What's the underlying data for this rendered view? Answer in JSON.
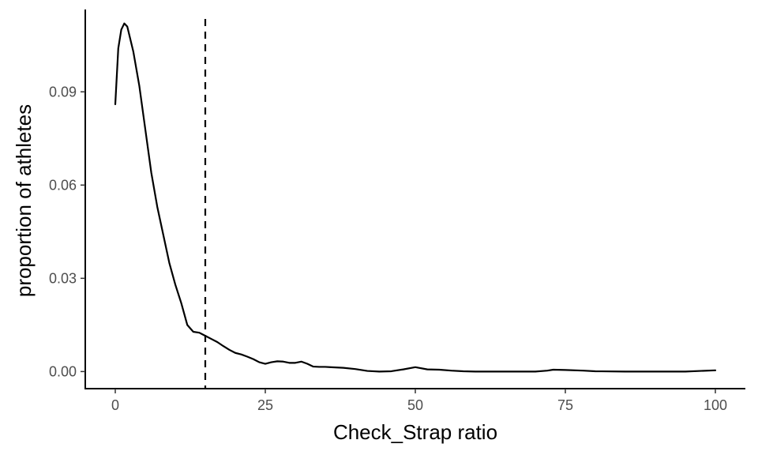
{
  "chart_data": {
    "type": "line",
    "title": "",
    "xlabel": "Check_Strap ratio",
    "ylabel": "proportion of athletes",
    "xlim": [
      -5,
      105
    ],
    "ylim": [
      -0.0055,
      0.1165
    ],
    "x_ticks": [
      0,
      25,
      50,
      75,
      100
    ],
    "x_tick_labels": [
      "0",
      "25",
      "50",
      "75",
      "100"
    ],
    "y_ticks": [
      0,
      0.03,
      0.06,
      0.09
    ],
    "y_tick_labels": [
      "0.00",
      "0.03",
      "0.06",
      "0.09"
    ],
    "grid": false,
    "legend": "none",
    "reference_line": {
      "x": 15,
      "style": "dashed"
    },
    "series": [
      {
        "x": [
          0,
          0.5,
          1,
          1.5,
          2,
          3,
          4,
          5,
          6,
          7,
          8,
          9,
          10,
          11,
          12,
          13,
          14,
          15,
          16,
          17,
          18,
          19,
          20,
          21,
          22,
          23,
          24,
          25,
          26,
          27,
          28,
          29,
          30,
          31,
          32,
          33,
          34,
          35,
          36,
          38,
          40,
          42,
          44,
          46,
          48,
          50,
          52,
          54,
          56,
          58,
          60,
          65,
          70,
          72,
          73,
          75,
          78,
          80,
          85,
          90,
          95,
          100
        ],
        "y": [
          0.086,
          0.104,
          0.11,
          0.112,
          0.111,
          0.103,
          0.092,
          0.078,
          0.064,
          0.053,
          0.044,
          0.035,
          0.028,
          0.022,
          0.015,
          0.0128,
          0.0125,
          0.0115,
          0.0105,
          0.0095,
          0.0082,
          0.007,
          0.006,
          0.0055,
          0.0048,
          0.004,
          0.003,
          0.0025,
          0.003,
          0.0033,
          0.0032,
          0.0028,
          0.0028,
          0.0032,
          0.0025,
          0.0016,
          0.0015,
          0.0015,
          0.0014,
          0.0012,
          0.0008,
          0.0002,
          0.0,
          0.0001,
          0.0007,
          0.0014,
          0.0007,
          0.0006,
          0.0003,
          0.0001,
          0.0,
          0.0,
          0.0,
          0.0003,
          0.0006,
          0.0005,
          0.0003,
          0.0001,
          0.0,
          0.0,
          0.0,
          0.0004
        ]
      }
    ]
  }
}
